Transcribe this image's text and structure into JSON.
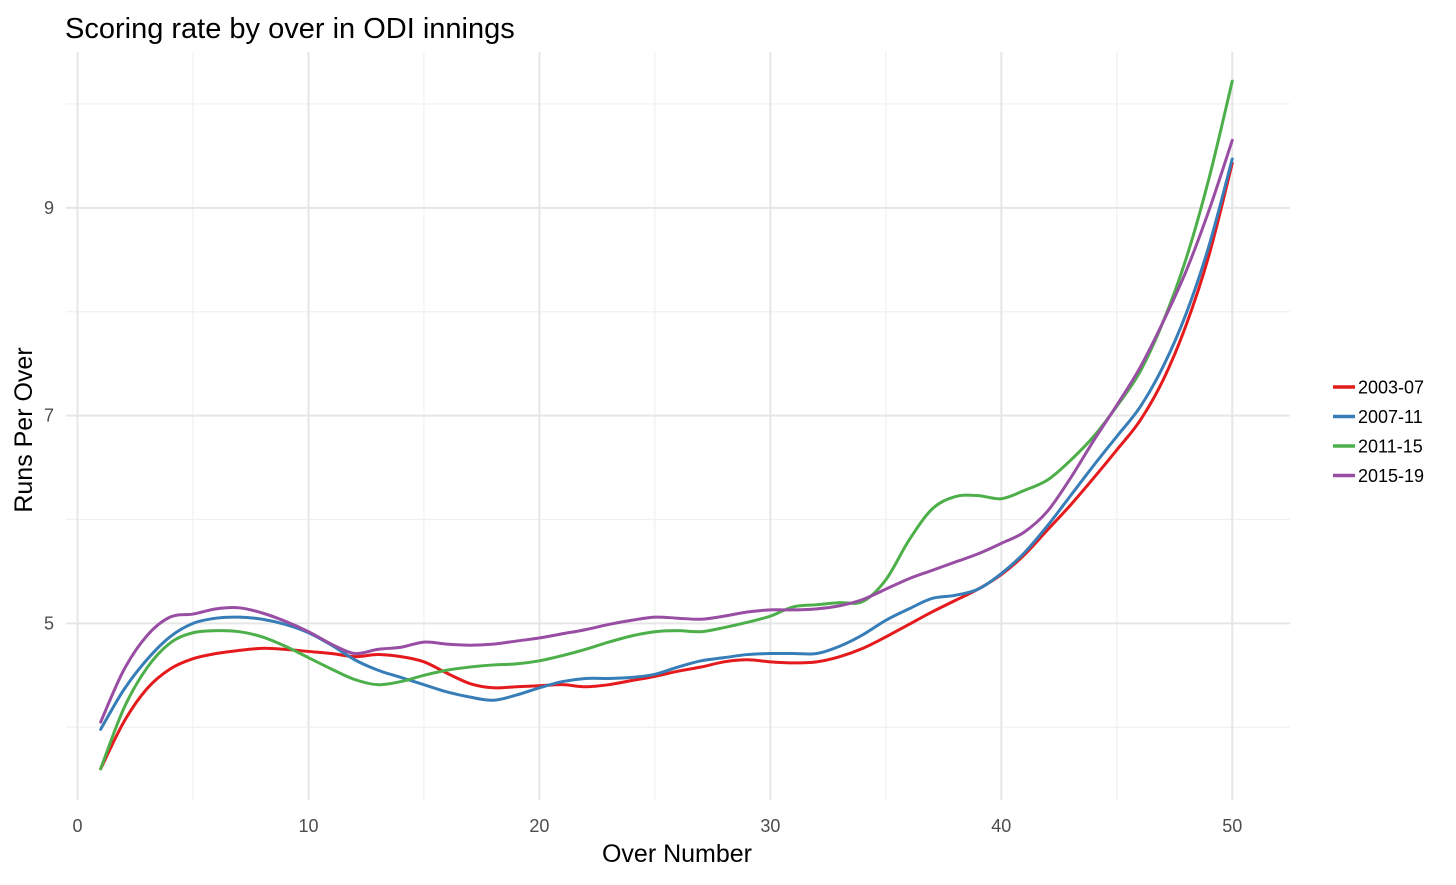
{
  "chart_data": {
    "type": "line",
    "title": "Scoring rate by over in ODI innings",
    "xlabel": "Over Number",
    "ylabel": "Runs Per Over",
    "xlim": [
      -0.5,
      52.5
    ],
    "ylim": [
      3.3,
      10.5
    ],
    "x_ticks": [
      0,
      10,
      20,
      30,
      40,
      50
    ],
    "y_ticks": [
      5,
      7,
      9
    ],
    "x_minor_ticks": [
      5,
      15,
      25,
      35,
      45
    ],
    "y_minor_ticks": [
      4,
      6,
      8,
      10
    ],
    "grid": true,
    "legend_position": "right",
    "series": [
      {
        "name": "2003-07",
        "color": "#e41a1c",
        "x": [
          1,
          2,
          3,
          4,
          5,
          6,
          7,
          8,
          9,
          10,
          11,
          12,
          13,
          14,
          15,
          16,
          17,
          18,
          19,
          20,
          21,
          22,
          23,
          24,
          25,
          26,
          27,
          28,
          29,
          30,
          31,
          32,
          33,
          34,
          35,
          36,
          37,
          38,
          39,
          40,
          41,
          42,
          43,
          44,
          45,
          46,
          47,
          48,
          49,
          50
        ],
        "values": [
          3.6,
          4.05,
          4.37,
          4.56,
          4.66,
          4.71,
          4.74,
          4.76,
          4.75,
          4.73,
          4.71,
          4.68,
          4.7,
          4.68,
          4.63,
          4.52,
          4.42,
          4.38,
          4.39,
          4.4,
          4.41,
          4.39,
          4.41,
          4.45,
          4.49,
          4.54,
          4.58,
          4.63,
          4.65,
          4.63,
          4.62,
          4.63,
          4.68,
          4.76,
          4.87,
          4.99,
          5.11,
          5.22,
          5.33,
          5.47,
          5.66,
          5.9,
          6.14,
          6.4,
          6.67,
          6.95,
          7.34,
          7.87,
          8.55,
          9.43
        ]
      },
      {
        "name": "2007-11",
        "color": "#377eb8",
        "x": [
          1,
          2,
          3,
          4,
          5,
          6,
          7,
          8,
          9,
          10,
          11,
          12,
          13,
          14,
          15,
          16,
          17,
          18,
          19,
          20,
          21,
          22,
          23,
          24,
          25,
          26,
          27,
          28,
          29,
          30,
          31,
          32,
          33,
          34,
          35,
          36,
          37,
          38,
          39,
          40,
          41,
          42,
          43,
          44,
          45,
          46,
          47,
          48,
          49,
          50
        ],
        "values": [
          3.98,
          4.36,
          4.65,
          4.87,
          5.0,
          5.05,
          5.06,
          5.04,
          4.99,
          4.91,
          4.79,
          4.65,
          4.55,
          4.48,
          4.41,
          4.34,
          4.29,
          4.26,
          4.31,
          4.38,
          4.44,
          4.47,
          4.47,
          4.48,
          4.51,
          4.58,
          4.64,
          4.67,
          4.7,
          4.71,
          4.71,
          4.71,
          4.78,
          4.89,
          5.03,
          5.14,
          5.24,
          5.27,
          5.33,
          5.48,
          5.68,
          5.94,
          6.23,
          6.52,
          6.8,
          7.08,
          7.47,
          7.98,
          8.64,
          9.47
        ]
      },
      {
        "name": "2011-15",
        "color": "#4daf4a",
        "x": [
          1,
          2,
          3,
          4,
          5,
          6,
          7,
          8,
          9,
          10,
          11,
          12,
          13,
          14,
          15,
          16,
          17,
          18,
          19,
          20,
          21,
          22,
          23,
          24,
          25,
          26,
          27,
          28,
          29,
          30,
          31,
          32,
          33,
          34,
          35,
          36,
          37,
          38,
          39,
          40,
          41,
          42,
          43,
          44,
          45,
          46,
          47,
          48,
          49,
          50
        ],
        "values": [
          3.6,
          4.18,
          4.57,
          4.81,
          4.91,
          4.93,
          4.92,
          4.87,
          4.78,
          4.67,
          4.56,
          4.46,
          4.41,
          4.44,
          4.5,
          4.55,
          4.58,
          4.6,
          4.61,
          4.64,
          4.69,
          4.75,
          4.82,
          4.88,
          4.92,
          4.93,
          4.92,
          4.96,
          5.01,
          5.07,
          5.16,
          5.18,
          5.2,
          5.21,
          5.42,
          5.8,
          6.1,
          6.22,
          6.23,
          6.2,
          6.28,
          6.38,
          6.57,
          6.8,
          7.09,
          7.42,
          7.9,
          8.51,
          9.29,
          10.22
        ]
      },
      {
        "name": "2015-19",
        "color": "#984ea3",
        "x": [
          1,
          2,
          3,
          4,
          5,
          6,
          7,
          8,
          9,
          10,
          11,
          12,
          13,
          14,
          15,
          16,
          17,
          18,
          19,
          20,
          21,
          22,
          23,
          24,
          25,
          26,
          27,
          28,
          29,
          30,
          31,
          32,
          33,
          34,
          35,
          36,
          37,
          38,
          39,
          40,
          41,
          42,
          43,
          44,
          45,
          46,
          47,
          48,
          49,
          50
        ],
        "values": [
          4.05,
          4.55,
          4.88,
          5.06,
          5.09,
          5.14,
          5.15,
          5.1,
          5.02,
          4.92,
          4.8,
          4.71,
          4.75,
          4.77,
          4.82,
          4.8,
          4.79,
          4.8,
          4.83,
          4.86,
          4.9,
          4.94,
          4.99,
          5.03,
          5.06,
          5.05,
          5.04,
          5.07,
          5.11,
          5.13,
          5.13,
          5.14,
          5.17,
          5.23,
          5.33,
          5.43,
          5.51,
          5.59,
          5.67,
          5.77,
          5.88,
          6.08,
          6.4,
          6.76,
          7.1,
          7.46,
          7.9,
          8.39,
          8.98,
          9.65
        ]
      }
    ]
  }
}
